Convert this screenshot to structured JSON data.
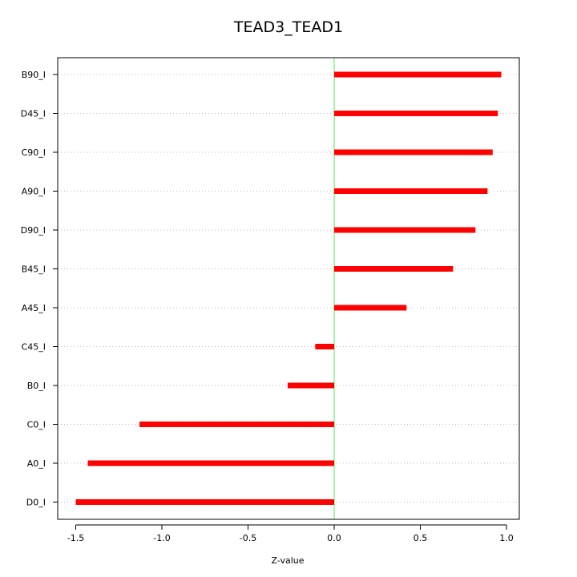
{
  "chart_data": {
    "type": "bar",
    "orientation": "horizontal",
    "title": "TEAD3_TEAD1",
    "xlabel": "Z-value",
    "ylabel": "",
    "categories": [
      "B90_I",
      "D45_I",
      "C90_I",
      "A90_I",
      "D90_I",
      "B45_I",
      "A45_I",
      "C45_I",
      "B0_I",
      "C0_I",
      "A0_I",
      "D0_I"
    ],
    "values": [
      0.97,
      0.95,
      0.92,
      0.89,
      0.82,
      0.69,
      0.42,
      -0.11,
      -0.27,
      -1.13,
      -1.43,
      -1.5
    ],
    "xlim": [
      -1.6,
      1.0
    ],
    "xticks": [
      -1.5,
      -1.0,
      -0.5,
      0.0,
      0.5,
      1.0
    ],
    "xtick_labels": [
      "-1.5",
      "-1.0",
      "-0.5",
      "0.0",
      "0.5",
      "1.0"
    ],
    "reference_line": 0.0,
    "grid": "horizontal dotted",
    "colors": {
      "bar": "#ff0000",
      "reference_line": "#90ee90",
      "grid": "#bbbbbb",
      "axis": "#000000"
    }
  }
}
